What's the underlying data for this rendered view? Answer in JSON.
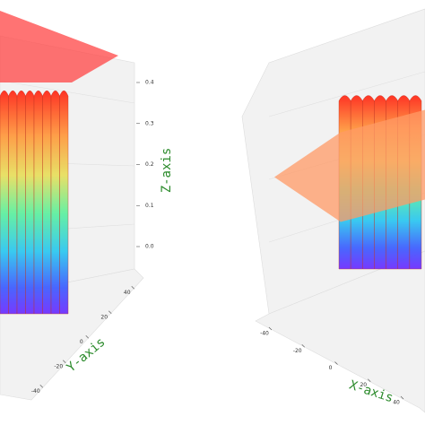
{
  "chart_data": [
    {
      "type": "surface3d",
      "zlabel": "Z-axis",
      "ylabel": "Y-axis",
      "zlim": [
        0,
        0.4
      ],
      "zticks": [
        {
          "value": 0,
          "label": "0.0"
        },
        0.1,
        0.2,
        0.3,
        0.4
      ],
      "ylim": [
        -50,
        50
      ],
      "yticks": [
        -40,
        -20,
        0,
        20,
        40
      ],
      "values": [
        0.38,
        0.38,
        0.38,
        0.38,
        0.38,
        0.38,
        0.38,
        0.38
      ],
      "plane_z": 0.4,
      "plane_color": "#ff4444"
    },
    {
      "type": "surface3d",
      "xlabel": "X-axis",
      "zlim": [
        0,
        0.4
      ],
      "xlim": [
        -50,
        50
      ],
      "xticks": [
        -40,
        -20,
        0,
        20,
        40
      ],
      "values": [
        0.36,
        0.36,
        0.36,
        0.36,
        0.36,
        0.36,
        0.36
      ],
      "plane_z": 0.2,
      "plane_color": "#ff9966"
    }
  ]
}
